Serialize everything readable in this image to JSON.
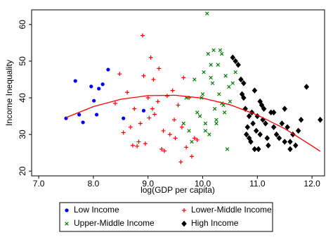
{
  "chart_data": {
    "type": "scatter",
    "x_label": "log(GDP per capita)",
    "y_label": "Income Inequality",
    "xlim": [
      6.87,
      12.23
    ],
    "ylim": [
      18.7,
      64
    ],
    "xticks": [
      {
        "value": 7,
        "label": "7.0"
      },
      {
        "value": 8,
        "label": "8.0"
      },
      {
        "value": 9,
        "label": "9.0"
      },
      {
        "value": 10,
        "label": "10.0"
      },
      {
        "value": 11,
        "label": "11.0"
      },
      {
        "value": 12,
        "label": "12.0"
      }
    ],
    "yticks": [
      20,
      30,
      40,
      50,
      60
    ],
    "grid": false,
    "legend": "bottom",
    "series": [
      {
        "name": "Low Income",
        "color": "#0000ff",
        "marker": "circle",
        "x": [
          7.5,
          7.67,
          7.74,
          7.81,
          7.96,
          8.01,
          8.06,
          8.1,
          8.17,
          8.27,
          8.55,
          8.92
        ],
        "values": [
          34.4,
          44.6,
          35.4,
          33.3,
          43.1,
          39.2,
          35.4,
          42.5,
          43.7,
          47.7,
          34.4,
          36.5
        ]
      },
      {
        "name": "Lower-Middle Income",
        "color": "#ff0000",
        "marker": "plus",
        "x": [
          8.4,
          8.48,
          8.55,
          8.62,
          8.68,
          8.72,
          8.75,
          8.8,
          8.83,
          8.86,
          8.9,
          8.95,
          9.0,
          9.02,
          9.05,
          9.1,
          9.12,
          9.18,
          9.2,
          9.25,
          9.3,
          9.35,
          9.4,
          9.45,
          9.48,
          9.5,
          9.55,
          9.6,
          9.62,
          9.65,
          9.7,
          9.75,
          9.8,
          9.85,
          9.9,
          8.92,
          9.08,
          9.28
        ],
        "values": [
          38.5,
          46.5,
          30.5,
          41.5,
          32,
          27,
          37,
          26.8,
          28,
          33,
          57,
          27.5,
          40,
          34.5,
          51,
          45,
          35.5,
          39,
          48,
          26,
          25.5,
          40.5,
          30,
          42,
          34,
          29,
          38,
          22.5,
          32,
          45.5,
          26.5,
          40,
          24,
          29,
          28.5,
          46,
          37,
          31
        ]
      },
      {
        "name": "Upper-Middle Income",
        "color": "#008000",
        "marker": "x",
        "x": [
          9.65,
          9.7,
          9.75,
          9.8,
          9.85,
          9.9,
          9.95,
          10.0,
          10.02,
          10.05,
          10.08,
          10.1,
          10.12,
          10.15,
          10.18,
          10.2,
          10.22,
          10.25,
          10.28,
          10.3,
          10.32,
          10.35,
          10.38,
          10.4,
          10.42,
          10.45,
          10.48,
          10.5,
          10.55,
          10.6,
          10.05,
          10.15,
          10.25,
          10.35,
          9.98
        ],
        "values": [
          33,
          40,
          31,
          28,
          45,
          36,
          35,
          41,
          47,
          33,
          63,
          52,
          30,
          49,
          44,
          53,
          37,
          34,
          49,
          41,
          53,
          52,
          38,
          36,
          46,
          26,
          43,
          39,
          44,
          47,
          31,
          45.5,
          33,
          38.5,
          40
        ]
      },
      {
        "name": "High Income",
        "color": "#000000",
        "marker": "diamond",
        "x": [
          10.55,
          10.6,
          10.65,
          10.7,
          10.72,
          10.75,
          10.78,
          10.8,
          10.82,
          10.85,
          10.88,
          10.9,
          10.92,
          10.95,
          10.98,
          11.0,
          11.02,
          11.05,
          11.08,
          11.1,
          11.12,
          11.15,
          11.18,
          11.2,
          11.25,
          11.3,
          11.35,
          11.4,
          11.45,
          11.5,
          11.55,
          11.6,
          11.65,
          11.7,
          11.75,
          11.8,
          11.9,
          12.15,
          10.75,
          10.85,
          11.05,
          11.3,
          11.5,
          11.6,
          10.95
        ],
        "values": [
          51,
          50,
          49,
          45,
          41,
          40,
          37,
          30,
          32,
          35,
          28,
          36,
          33,
          26,
          31,
          35,
          26,
          30,
          38,
          34,
          37,
          33,
          29,
          27,
          36,
          32,
          30,
          29,
          33,
          28,
          32,
          26,
          30,
          27,
          31,
          34,
          43,
          34,
          44,
          29,
          39,
          36,
          37,
          28,
          42
        ]
      }
    ],
    "fit": {
      "color": "#ff0000",
      "x": [
        7.5,
        8.0,
        8.5,
        9.0,
        9.5,
        10.0,
        10.5,
        11.0,
        11.5,
        12.0,
        12.15
      ],
      "values": [
        34.6,
        37.6,
        39.6,
        40.6,
        40.7,
        39.9,
        38.1,
        35.3,
        31.6,
        26.9,
        25.4
      ]
    }
  }
}
